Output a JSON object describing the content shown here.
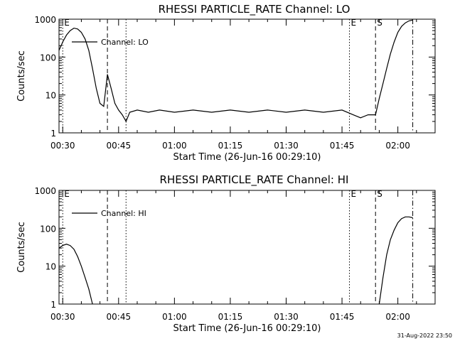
{
  "footer": {
    "timestamp": "31-Aug-2022 23:50"
  },
  "chart_data": [
    {
      "type": "line",
      "title": "RHESSI PARTICLE_RATE Channel: LO",
      "xlabel": "Start Time (26-Jun-16 00:29:10)",
      "ylabel": "Counts/sec",
      "y_scale": "log",
      "ylim": [
        1,
        1000
      ],
      "y_ticks": [
        {
          "value": 1,
          "label": "1"
        },
        {
          "value": 10,
          "label": "10"
        },
        {
          "value": 100,
          "label": "100"
        },
        {
          "value": 1000,
          "label": "1000"
        }
      ],
      "xlim": [
        "00:29",
        "02:10"
      ],
      "x_ticks": [
        "00:30",
        "00:45",
        "01:00",
        "01:15",
        "01:30",
        "01:45",
        "02:00"
      ],
      "legend": {
        "position": "top-left",
        "entries": [
          "Channel: LO"
        ]
      },
      "markers": [
        {
          "time": "00:30",
          "label": "E",
          "style": "dotted"
        },
        {
          "time": "00:42",
          "label": "",
          "style": "dashed"
        },
        {
          "time": "00:47",
          "label": "",
          "style": "dotted"
        },
        {
          "time": "01:47",
          "label": "E",
          "style": "dotted"
        },
        {
          "time": "01:54",
          "label": "S",
          "style": "dashed"
        },
        {
          "time": "02:04",
          "label": "",
          "style": "dashdot"
        }
      ],
      "series": [
        {
          "name": "Channel: LO",
          "points": [
            [
              "00:29",
              150
            ],
            [
              "00:30",
              250
            ],
            [
              "00:31",
              380
            ],
            [
              "00:32",
              500
            ],
            [
              "00:33",
              580
            ],
            [
              "00:34",
              550
            ],
            [
              "00:35",
              450
            ],
            [
              "00:36",
              300
            ],
            [
              "00:37",
              150
            ],
            [
              "00:38",
              50
            ],
            [
              "00:39",
              15
            ],
            [
              "00:40",
              6
            ],
            [
              "00:41",
              5
            ],
            [
              "00:42",
              35
            ],
            [
              "00:43",
              15
            ],
            [
              "00:44",
              6
            ],
            [
              "00:45",
              4
            ],
            [
              "00:46",
              3
            ],
            [
              "00:47",
              2
            ],
            [
              "00:48",
              3.5
            ],
            [
              "00:50",
              4
            ],
            [
              "00:53",
              3.5
            ],
            [
              "00:56",
              4
            ],
            [
              "01:00",
              3.5
            ],
            [
              "01:05",
              4
            ],
            [
              "01:10",
              3.5
            ],
            [
              "01:15",
              4
            ],
            [
              "01:20",
              3.5
            ],
            [
              "01:25",
              4
            ],
            [
              "01:30",
              3.5
            ],
            [
              "01:35",
              4
            ],
            [
              "01:40",
              3.5
            ],
            [
              "01:45",
              4
            ],
            [
              "01:48",
              3
            ],
            [
              "01:50",
              2.5
            ],
            [
              "01:52",
              3
            ],
            [
              "01:54",
              3
            ],
            [
              "01:55",
              8
            ],
            [
              "01:56",
              20
            ],
            [
              "01:57",
              50
            ],
            [
              "01:58",
              120
            ],
            [
              "01:59",
              250
            ],
            [
              "02:00",
              450
            ],
            [
              "02:01",
              650
            ],
            [
              "02:02",
              800
            ],
            [
              "02:03",
              900
            ],
            [
              "02:04",
              950
            ]
          ]
        }
      ]
    },
    {
      "type": "line",
      "title": "RHESSI PARTICLE_RATE Channel: HI",
      "xlabel": "Start Time (26-Jun-16 00:29:10)",
      "ylabel": "Counts/sec",
      "y_scale": "log",
      "ylim": [
        1,
        1000
      ],
      "y_ticks": [
        {
          "value": 1,
          "label": "1"
        },
        {
          "value": 10,
          "label": "10"
        },
        {
          "value": 100,
          "label": "100"
        },
        {
          "value": 1000,
          "label": "1000"
        }
      ],
      "xlim": [
        "00:29",
        "02:10"
      ],
      "x_ticks": [
        "00:30",
        "00:45",
        "01:00",
        "01:15",
        "01:30",
        "01:45",
        "02:00"
      ],
      "legend": {
        "position": "top-left",
        "entries": [
          "Channel: HI"
        ]
      },
      "markers": [
        {
          "time": "00:30",
          "label": "E",
          "style": "dotted"
        },
        {
          "time": "00:42",
          "label": "",
          "style": "dashed"
        },
        {
          "time": "00:47",
          "label": "",
          "style": "dotted"
        },
        {
          "time": "01:47",
          "label": "E",
          "style": "dotted"
        },
        {
          "time": "01:54",
          "label": "S",
          "style": "dashed"
        },
        {
          "time": "02:04",
          "label": "",
          "style": "dashdot"
        }
      ],
      "series": [
        {
          "name": "Channel: HI",
          "points": [
            [
              "00:29",
              30
            ],
            [
              "00:30",
              35
            ],
            [
              "00:31",
              38
            ],
            [
              "00:32",
              35
            ],
            [
              "00:33",
              28
            ],
            [
              "00:34",
              18
            ],
            [
              "00:35",
              10
            ],
            [
              "00:36",
              5
            ],
            [
              "00:37",
              2.5
            ],
            [
              "00:38",
              1
            ],
            [
              "01:55",
              1
            ],
            [
              "01:56",
              5
            ],
            [
              "01:57",
              20
            ],
            [
              "01:58",
              50
            ],
            [
              "01:59",
              90
            ],
            [
              "02:00",
              140
            ],
            [
              "02:01",
              180
            ],
            [
              "02:02",
              200
            ],
            [
              "02:03",
              200
            ],
            [
              "02:04",
              190
            ]
          ]
        }
      ]
    }
  ]
}
